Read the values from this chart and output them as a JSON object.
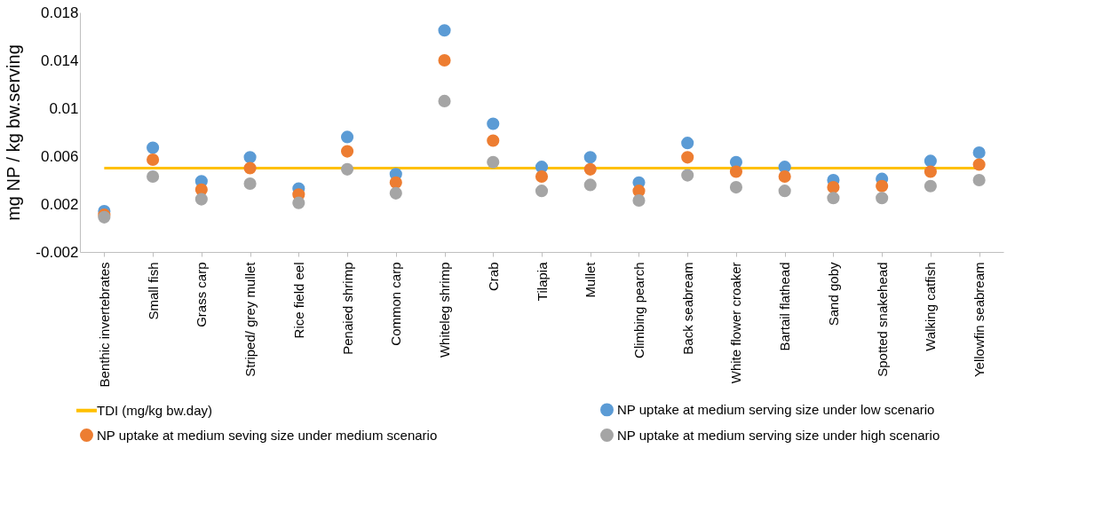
{
  "chart_data": {
    "type": "scatter",
    "ylabel": "mg NP / kg bw.serving",
    "categories": [
      "Benthic invertebrates",
      "Small fish",
      "Grass carp",
      "Striped/ grey mullet",
      "Rice field eel",
      "Penaied shrimp",
      "Common carp",
      "Whiteleg shrimp",
      "Crab",
      "Tilapia",
      "Mullet",
      "Climbing pearch",
      "Back seabream",
      "White flower croaker",
      "Bartail flathead",
      "Sand goby",
      "Spotted snakehead",
      "Walking catfish",
      "Yellowfin seabream"
    ],
    "series": [
      {
        "name": "TDI (mg/kg bw.day)",
        "type": "line",
        "marker": "none",
        "color": "#ffc000",
        "values": [
          0.005,
          0.005,
          0.005,
          0.005,
          0.005,
          0.005,
          0.005,
          0.005,
          0.005,
          0.005,
          0.005,
          0.005,
          0.005,
          0.005,
          0.005,
          0.005,
          0.005,
          0.005,
          0.005
        ]
      },
      {
        "name": "NP uptake at medium serving size under low scenario",
        "color": "#5b9bd5",
        "values": [
          0.0014,
          0.0067,
          0.0039,
          0.0059,
          0.0033,
          0.0076,
          0.0045,
          0.0165,
          0.0087,
          0.0051,
          0.0059,
          0.0038,
          0.0071,
          0.0055,
          0.0051,
          0.004,
          0.0041,
          0.0056,
          0.0063
        ]
      },
      {
        "name": "NP uptake at medium seving size under medium scenario",
        "color": "#ed7d31",
        "values": [
          0.0011,
          0.0057,
          0.0032,
          0.005,
          0.0028,
          0.0064,
          0.0038,
          0.014,
          0.0073,
          0.0043,
          0.0049,
          0.0031,
          0.0059,
          0.0047,
          0.0043,
          0.0034,
          0.0035,
          0.0047,
          0.0053
        ]
      },
      {
        "name": "NP uptake at medium serving size under high scenario",
        "color": "#a5a5a5",
        "values": [
          0.0009,
          0.0043,
          0.0024,
          0.0037,
          0.0021,
          0.0049,
          0.0029,
          0.0106,
          0.0055,
          0.0031,
          0.0036,
          0.0023,
          0.0044,
          0.0034,
          0.0031,
          0.0025,
          0.0025,
          0.0035,
          0.004
        ]
      }
    ],
    "ylim": [
      -0.002,
      0.018
    ],
    "yticks": [
      -0.002,
      0.002,
      0.006,
      0.01,
      0.014,
      0.018
    ],
    "grid": false,
    "legend": "bottom",
    "marker": "circle"
  }
}
